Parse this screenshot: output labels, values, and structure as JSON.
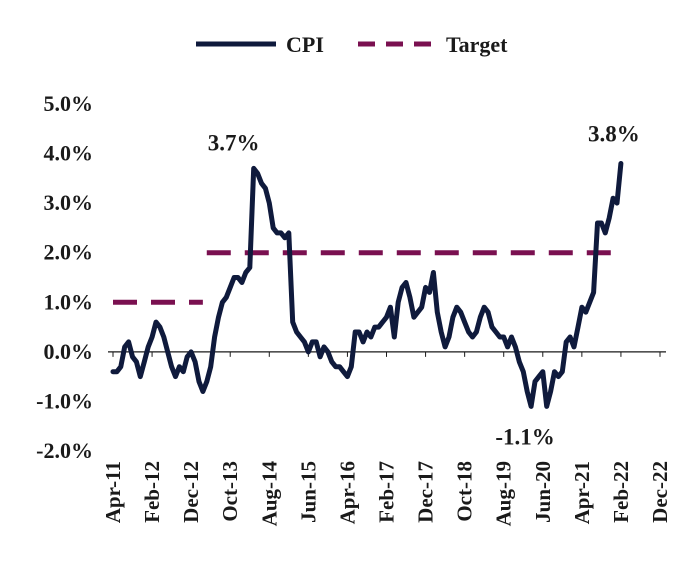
{
  "chart_data": {
    "type": "line",
    "title": "",
    "xlabel": "",
    "ylabel": "",
    "ylim": [
      -2.0,
      5.0
    ],
    "grid": false,
    "legend_position": "top",
    "y_ticks": [
      "5.0%",
      "4.0%",
      "3.0%",
      "2.0%",
      "1.0%",
      "0.0%",
      "-1.0%",
      "-2.0%"
    ],
    "x_ticks": [
      "Apr-11",
      "Feb-12",
      "Dec-12",
      "Oct-13",
      "Aug-14",
      "Jun-15",
      "Apr-16",
      "Feb-17",
      "Dec-17",
      "Oct-18",
      "Aug-19",
      "Jun-20",
      "Apr-21",
      "Feb-22",
      "Dec-22"
    ],
    "series": [
      {
        "name": "CPI",
        "color": "#0f1a3c",
        "style": "solid",
        "points": [
          [
            "Apr-11",
            -0.4
          ],
          [
            "May-11",
            -0.4
          ],
          [
            "Jun-11",
            -0.3
          ],
          [
            "Jul-11",
            0.1
          ],
          [
            "Aug-11",
            0.2
          ],
          [
            "Sep-11",
            -0.1
          ],
          [
            "Oct-11",
            -0.2
          ],
          [
            "Nov-11",
            -0.5
          ],
          [
            "Dec-11",
            -0.2
          ],
          [
            "Jan-12",
            0.1
          ],
          [
            "Feb-12",
            0.3
          ],
          [
            "Mar-12",
            0.6
          ],
          [
            "Apr-12",
            0.5
          ],
          [
            "May-12",
            0.3
          ],
          [
            "Jun-12",
            0.0
          ],
          [
            "Jul-12",
            -0.3
          ],
          [
            "Aug-12",
            -0.5
          ],
          [
            "Sep-12",
            -0.3
          ],
          [
            "Oct-12",
            -0.4
          ],
          [
            "Nov-12",
            -0.1
          ],
          [
            "Dec-12",
            0.0
          ],
          [
            "Jan-13",
            -0.2
          ],
          [
            "Feb-13",
            -0.6
          ],
          [
            "Mar-13",
            -0.8
          ],
          [
            "Apr-13",
            -0.6
          ],
          [
            "May-13",
            -0.3
          ],
          [
            "Jun-13",
            0.3
          ],
          [
            "Jul-13",
            0.7
          ],
          [
            "Aug-13",
            1.0
          ],
          [
            "Sep-13",
            1.1
          ],
          [
            "Oct-13",
            1.3
          ],
          [
            "Nov-13",
            1.5
          ],
          [
            "Dec-13",
            1.5
          ],
          [
            "Jan-14",
            1.4
          ],
          [
            "Feb-14",
            1.6
          ],
          [
            "Mar-14",
            1.7
          ],
          [
            "Apr-14",
            3.7
          ],
          [
            "May-14",
            3.6
          ],
          [
            "Jun-14",
            3.4
          ],
          [
            "Jul-14",
            3.3
          ],
          [
            "Aug-14",
            3.0
          ],
          [
            "Sep-14",
            2.5
          ],
          [
            "Oct-14",
            2.4
          ],
          [
            "Nov-14",
            2.4
          ],
          [
            "Dec-14",
            2.3
          ],
          [
            "Jan-15",
            2.4
          ],
          [
            "Feb-15",
            0.6
          ],
          [
            "Mar-15",
            0.4
          ],
          [
            "Apr-15",
            0.3
          ],
          [
            "May-15",
            0.2
          ],
          [
            "Jun-15",
            0.0
          ],
          [
            "Jul-15",
            0.2
          ],
          [
            "Aug-15",
            0.2
          ],
          [
            "Sep-15",
            -0.1
          ],
          [
            "Oct-15",
            0.1
          ],
          [
            "Nov-15",
            0.0
          ],
          [
            "Dec-15",
            -0.2
          ],
          [
            "Jan-16",
            -0.3
          ],
          [
            "Feb-16",
            -0.3
          ],
          [
            "Mar-16",
            -0.4
          ],
          [
            "Apr-16",
            -0.5
          ],
          [
            "May-16",
            -0.3
          ],
          [
            "Jun-16",
            0.4
          ],
          [
            "Jul-16",
            0.4
          ],
          [
            "Aug-16",
            0.2
          ],
          [
            "Sep-16",
            0.4
          ],
          [
            "Oct-16",
            0.3
          ],
          [
            "Nov-16",
            0.5
          ],
          [
            "Dec-16",
            0.5
          ],
          [
            "Jan-17",
            0.6
          ],
          [
            "Feb-17",
            0.7
          ],
          [
            "Mar-17",
            0.9
          ],
          [
            "Apr-17",
            0.3
          ],
          [
            "May-17",
            1.0
          ],
          [
            "Jun-17",
            1.3
          ],
          [
            "Jul-17",
            1.4
          ],
          [
            "Aug-17",
            1.1
          ],
          [
            "Sep-17",
            0.7
          ],
          [
            "Oct-17",
            0.8
          ],
          [
            "Nov-17",
            0.9
          ],
          [
            "Dec-17",
            1.3
          ],
          [
            "Jan-18",
            1.2
          ],
          [
            "Feb-18",
            1.6
          ],
          [
            "Mar-18",
            0.8
          ],
          [
            "Apr-18",
            0.4
          ],
          [
            "May-18",
            0.1
          ],
          [
            "Jun-18",
            0.3
          ],
          [
            "Jul-18",
            0.7
          ],
          [
            "Aug-18",
            0.9
          ],
          [
            "Sep-18",
            0.8
          ],
          [
            "Oct-18",
            0.6
          ],
          [
            "Nov-18",
            0.4
          ],
          [
            "Dec-18",
            0.3
          ],
          [
            "Jan-19",
            0.4
          ],
          [
            "Feb-19",
            0.7
          ],
          [
            "Mar-19",
            0.9
          ],
          [
            "Apr-19",
            0.8
          ],
          [
            "May-19",
            0.5
          ],
          [
            "Jun-19",
            0.4
          ],
          [
            "Jul-19",
            0.3
          ],
          [
            "Aug-19",
            0.3
          ],
          [
            "Sep-19",
            0.1
          ],
          [
            "Oct-19",
            0.3
          ],
          [
            "Nov-19",
            0.1
          ],
          [
            "Dec-19",
            -0.2
          ],
          [
            "Jan-20",
            -0.4
          ],
          [
            "Feb-20",
            -0.8
          ],
          [
            "Mar-20",
            -1.1
          ],
          [
            "Apr-20",
            -0.6
          ],
          [
            "May-20",
            -0.5
          ],
          [
            "Jun-20",
            -0.4
          ],
          [
            "Jul-20",
            -1.1
          ],
          [
            "Aug-20",
            -0.8
          ],
          [
            "Sep-20",
            -0.4
          ],
          [
            "Oct-20",
            -0.5
          ],
          [
            "Nov-20",
            -0.4
          ],
          [
            "Dec-20",
            0.2
          ],
          [
            "Jan-21",
            0.3
          ],
          [
            "Feb-21",
            0.1
          ],
          [
            "Mar-21",
            0.5
          ],
          [
            "Apr-21",
            0.9
          ],
          [
            "May-21",
            0.8
          ],
          [
            "Jun-21",
            1.0
          ],
          [
            "Jul-21",
            1.2
          ],
          [
            "Aug-21",
            2.6
          ],
          [
            "Sep-21",
            2.6
          ],
          [
            "Oct-21",
            2.4
          ],
          [
            "Nov-21",
            2.7
          ],
          [
            "Dec-21",
            3.1
          ],
          [
            "Jan-22",
            3.0
          ],
          [
            "Feb-22",
            3.8
          ]
        ]
      },
      {
        "name": "Target",
        "color": "#7a1050",
        "style": "dashed",
        "segments": [
          {
            "from": "Apr-11",
            "to": "Mar-13",
            "value": 1.0
          },
          {
            "from": "Apr-13",
            "to": "Feb-22",
            "value": 2.0
          }
        ]
      }
    ],
    "annotations": [
      {
        "text": "3.7%",
        "x": "Apr-14",
        "y": 3.7
      },
      {
        "text": "-1.1%",
        "x": "Mar-20",
        "y": -1.1
      },
      {
        "text": "3.8%",
        "x": "Feb-22",
        "y": 3.8
      }
    ]
  }
}
